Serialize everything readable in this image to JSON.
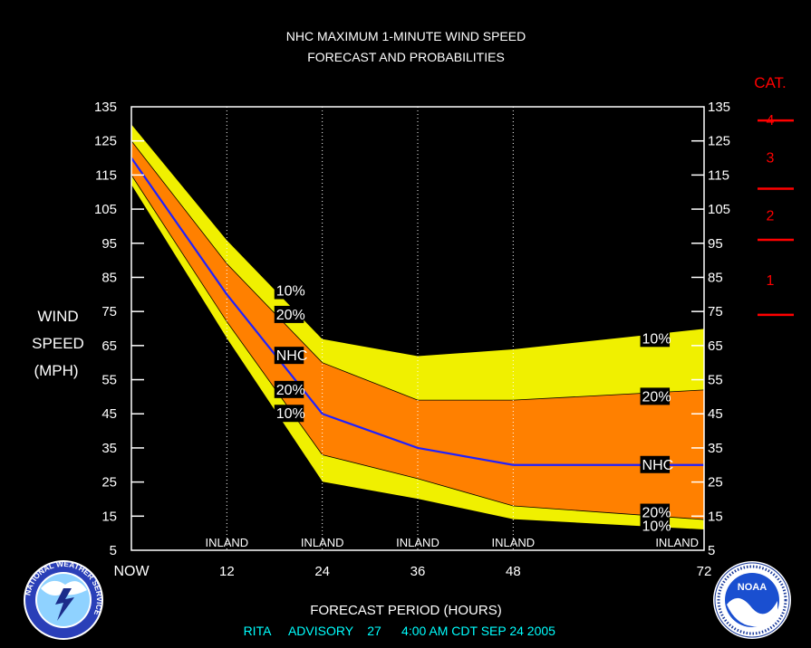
{
  "chart_data": {
    "type": "area",
    "title_lines": [
      "NHC MAXIMUM 1-MINUTE WIND SPEED",
      "FORECAST AND PROBABILITIES"
    ],
    "ylabel_lines": [
      "WIND",
      "SPEED",
      "(MPH)"
    ],
    "xlabel": "FORECAST PERIOD (HOURS)",
    "x": [
      0,
      12,
      24,
      36,
      48,
      72
    ],
    "x_tick_labels": [
      "NOW",
      "12",
      "24",
      "36",
      "48",
      "72"
    ],
    "ylim": [
      5,
      135
    ],
    "y_ticks": [
      5,
      15,
      25,
      35,
      45,
      55,
      65,
      75,
      85,
      95,
      105,
      115,
      125,
      135
    ],
    "inland_label": "INLAND",
    "inland_at": [
      12,
      24,
      36,
      48,
      72
    ],
    "series": [
      {
        "name": "10%",
        "values": [
          130,
          96,
          67,
          62,
          64,
          70
        ],
        "color": "#f0f000"
      },
      {
        "name": "20%",
        "values": [
          125,
          89,
          60,
          49,
          49,
          52
        ],
        "color": "#ff8000"
      },
      {
        "name": "NHC",
        "values": [
          120,
          80,
          45,
          35,
          30,
          30
        ],
        "color": "#2020ff"
      },
      {
        "name": "20%",
        "values": [
          115,
          72,
          33,
          26,
          18,
          14
        ],
        "color": "#ff8000"
      },
      {
        "name": "10%",
        "values": [
          112,
          67,
          25,
          20,
          14,
          11
        ],
        "color": "#f0f000"
      }
    ],
    "band_labels": [
      {
        "text": "10%",
        "x": 18.2,
        "y": 81
      },
      {
        "text": "20%",
        "x": 18.2,
        "y": 74
      },
      {
        "text": "NHC",
        "x": 18.2,
        "y": 62
      },
      {
        "text": "20%",
        "x": 18.2,
        "y": 52
      },
      {
        "text": "10%",
        "x": 18.2,
        "y": 45
      },
      {
        "text": "10%",
        "x": 64.2,
        "y": 67
      },
      {
        "text": "20%",
        "x": 64.2,
        "y": 50
      },
      {
        "text": "NHC",
        "x": 64.2,
        "y": 30
      },
      {
        "text": "20%",
        "x": 64.2,
        "y": 16
      },
      {
        "text": "10%",
        "x": 64.2,
        "y": 12
      }
    ],
    "category_title": "CAT.",
    "categories": [
      {
        "label": "4",
        "value": 131
      },
      {
        "label": "3",
        "value": 120
      },
      {
        "label": "2",
        "value": 103
      },
      {
        "label": "1",
        "value": 84
      }
    ],
    "category_thresholds": [
      131,
      111,
      96,
      74
    ]
  },
  "advisory": {
    "storm": "RITA",
    "label": "ADVISORY",
    "number": "27",
    "time": "4:00 AM CDT SEP 24 2005"
  },
  "logos": {
    "left": "NATIONAL WEATHER SERVICE",
    "right": "NOAA"
  },
  "colors": {
    "outer": "#f0f000",
    "inner": "#ff8000",
    "nhc": "#2020ff",
    "category": "#ff0000",
    "advisory": "#00ffff",
    "text": "#ffffff"
  }
}
